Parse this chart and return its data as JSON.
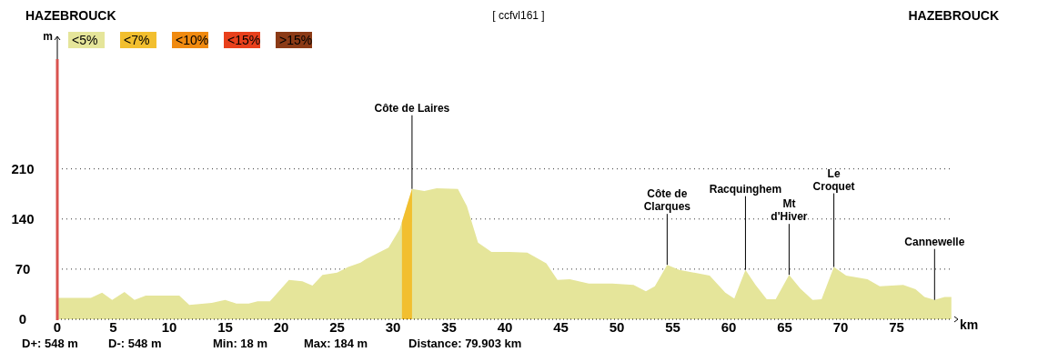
{
  "chart_data": {
    "type": "area",
    "subtitle": "[ ccfvl161 ]",
    "xlabel": "km",
    "ylabel": "m",
    "x": [
      0,
      3,
      4,
      4.9,
      6,
      6.9,
      7.9,
      10.9,
      11.8,
      13.8,
      15,
      16,
      17.1,
      17.9,
      19,
      20.7,
      21.9,
      22.8,
      23.7,
      25,
      26,
      27.1,
      27.6,
      29.6,
      30.6,
      31.7,
      32.8,
      33.9,
      35.8,
      36.6,
      37.6,
      38.8,
      40.4,
      42,
      43.7,
      44.7,
      45.8,
      47.5,
      49.6,
      51.5,
      52.6,
      53.4,
      54.5,
      55.6,
      58.3,
      59.7,
      60.5,
      61.5,
      62.4,
      63.4,
      64.2,
      65.4,
      66.4,
      67.5,
      68.3,
      69.4,
      70.5,
      72.4,
      73.5,
      75.6,
      76.7,
      77.5,
      78.4,
      79.3,
      79.9
    ],
    "series": [
      {
        "name": "<5%",
        "color": "#e5e59a",
        "values": [
          30,
          30,
          37,
          27,
          38,
          27,
          33,
          33,
          20,
          23,
          27,
          22,
          22,
          25,
          25,
          55,
          53,
          47,
          62,
          65,
          73,
          79,
          84,
          100,
          126,
          182,
          179,
          183,
          182,
          158,
          107,
          94,
          94,
          93,
          78,
          55,
          56,
          50,
          50,
          48,
          39,
          46,
          76,
          69,
          61,
          37,
          29,
          69,
          48,
          28,
          28,
          62,
          43,
          27,
          28,
          73,
          61,
          56,
          46,
          48,
          42,
          31,
          27,
          31,
          31
        ]
      },
      {
        "name": "<7%",
        "color": "#f2bf2f",
        "x": [
          30.8,
          31.7
        ],
        "values": [
          136,
          182
        ]
      },
      {
        "name": "<10%",
        "color": "#f08a10",
        "values": [
          null,
          null,
          null,
          null,
          null,
          null,
          null,
          null,
          null,
          null,
          null,
          null,
          null,
          null,
          null,
          null,
          null,
          null,
          null,
          null,
          null,
          null,
          null,
          null,
          null,
          null,
          null,
          null,
          null,
          null,
          null,
          null,
          null,
          null,
          null,
          null,
          null,
          null,
          null,
          null,
          null,
          null,
          null,
          null,
          null,
          null,
          null,
          null,
          null,
          null,
          null,
          null,
          null,
          null,
          null,
          null,
          null,
          null,
          null,
          null,
          null,
          null,
          null,
          null,
          null
        ]
      },
      {
        "name": "<15%",
        "color": "#e8401c",
        "values": [
          null,
          null,
          null,
          null,
          null,
          null,
          null,
          null,
          null,
          null,
          null,
          null,
          null,
          null,
          null,
          null,
          null,
          null,
          null,
          null,
          null,
          null,
          null,
          null,
          null,
          null,
          null,
          null,
          null,
          null,
          null,
          null,
          null,
          null,
          null,
          null,
          null,
          null,
          null,
          null,
          null,
          null,
          null,
          null,
          null,
          null,
          null,
          null,
          null,
          null,
          null,
          null,
          null,
          null,
          null,
          null,
          null,
          null,
          null,
          null,
          null,
          null,
          null,
          null,
          null
        ]
      },
      {
        "name": ">15%",
        "color": "#8b3a16",
        "values": [
          null,
          null,
          null,
          null,
          null,
          null,
          null,
          null,
          null,
          null,
          null,
          null,
          null,
          null,
          null,
          null,
          null,
          null,
          null,
          null,
          null,
          null,
          null,
          null,
          null,
          null,
          null,
          null,
          null,
          null,
          null,
          null,
          null,
          null,
          null,
          null,
          null,
          null,
          null,
          null,
          null,
          null,
          null,
          null,
          null,
          null,
          null,
          null,
          null,
          null,
          null,
          null,
          null,
          null,
          null,
          null,
          null,
          null,
          null,
          null,
          null,
          null,
          null,
          null,
          null
        ]
      }
    ],
    "xlim": [
      0,
      80
    ],
    "xticks": [
      0,
      5,
      10,
      15,
      20,
      25,
      30,
      35,
      40,
      45,
      50,
      55,
      60,
      65,
      70,
      75
    ],
    "ylim": [
      0,
      395
    ],
    "yticks": [
      0,
      70,
      140,
      210
    ],
    "grid": "y",
    "legend": "top left",
    "ref_lines": [
      {
        "axis": "x",
        "value": 0,
        "color": "#d9534f"
      }
    ],
    "annotations": [
      "HAZEBROUCK",
      "HAZEBROUCK",
      "D+: 548 m",
      "D-: 548 m",
      "Min: 18 m",
      "Max: 184 m",
      "Distance: 79.903 km",
      {
        "text": "Côte de Laires",
        "x": 31.7,
        "y": 182
      },
      {
        "text": "Côte de\nClarques",
        "x": 54.5,
        "y": 76
      },
      {
        "text": "Racquinghem",
        "x": 61.5,
        "y": 69
      },
      {
        "text": "Mt\nd'Hiver",
        "x": 65.4,
        "y": 62
      },
      {
        "text": "Le\nCroquet",
        "x": 69.4,
        "y": 73
      },
      {
        "text": "Cannewelle",
        "x": 78.4,
        "y": 27
      }
    ]
  }
}
